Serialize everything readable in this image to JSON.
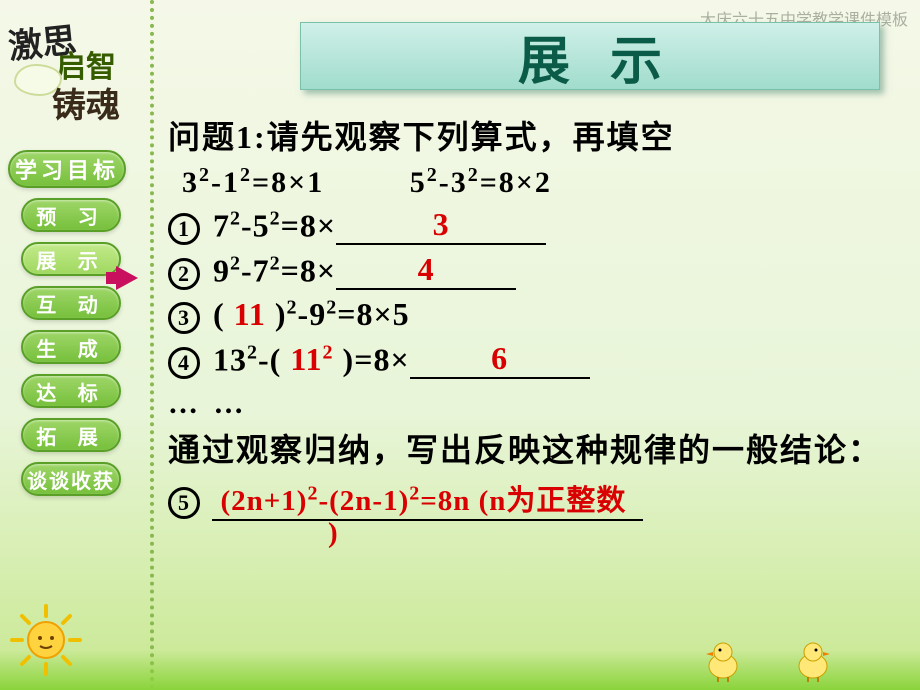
{
  "watermark": "大庆六十五中学教学课件模板",
  "logo": {
    "line1": "激思",
    "line2": "启智",
    "line3": "铸魂"
  },
  "sidebar": {
    "items": [
      {
        "label": "学习目标",
        "cls": "nav-btn"
      },
      {
        "label": "预 习",
        "cls": "nav-btn small"
      },
      {
        "label": "展 示",
        "cls": "nav-btn small active"
      },
      {
        "label": "互 动",
        "cls": "nav-btn small"
      },
      {
        "label": "生 成",
        "cls": "nav-btn small"
      },
      {
        "label": "达 标",
        "cls": "nav-btn small"
      },
      {
        "label": "拓 展",
        "cls": "nav-btn small"
      },
      {
        "label": "谈谈收获",
        "cls": "nav-btn tiny"
      }
    ],
    "active_index": 2
  },
  "title": "展示",
  "question": {
    "heading": "问题1:请先观察下列算式，再填空",
    "examples_left": "3²-1²=8×1",
    "examples_right": "5²-3²=8×2",
    "rows": [
      {
        "num": "1",
        "pre": "7²-5²=8×",
        "answer": "3",
        "blank_w": "blank150"
      },
      {
        "num": "2",
        "pre": "9²-7²=8×",
        "answer": "4",
        "blank_w": "blank120"
      },
      {
        "num": "3",
        "pre_a": "(",
        "ans_in": "11",
        "pre_b": ")²-9²=8×5"
      },
      {
        "num": "4",
        "pre_a": "13²-(",
        "ans_in": "11²",
        "pre_b": ")=8×",
        "answer": "6",
        "blank_w": "blank120"
      }
    ],
    "dots": "… …",
    "summary": "通过观察归纳，写出反映这种规律的一般结论：",
    "row5": {
      "num": "5",
      "answer": "(2n+1)²-(2n-1)²=8n (n为正整数)"
    }
  },
  "colors": {
    "answer": "#d80000",
    "title_text": "#0a5c48",
    "banner_bg_top": "#d0f0e8",
    "banner_bg_bot": "#a0dccc",
    "nav_bg_top": "#9ed668",
    "nav_bg_bot": "#77c03c",
    "arrow": "#c8105e",
    "bg_top": "#f5f8e8",
    "bg_bot": "#c8e890"
  }
}
